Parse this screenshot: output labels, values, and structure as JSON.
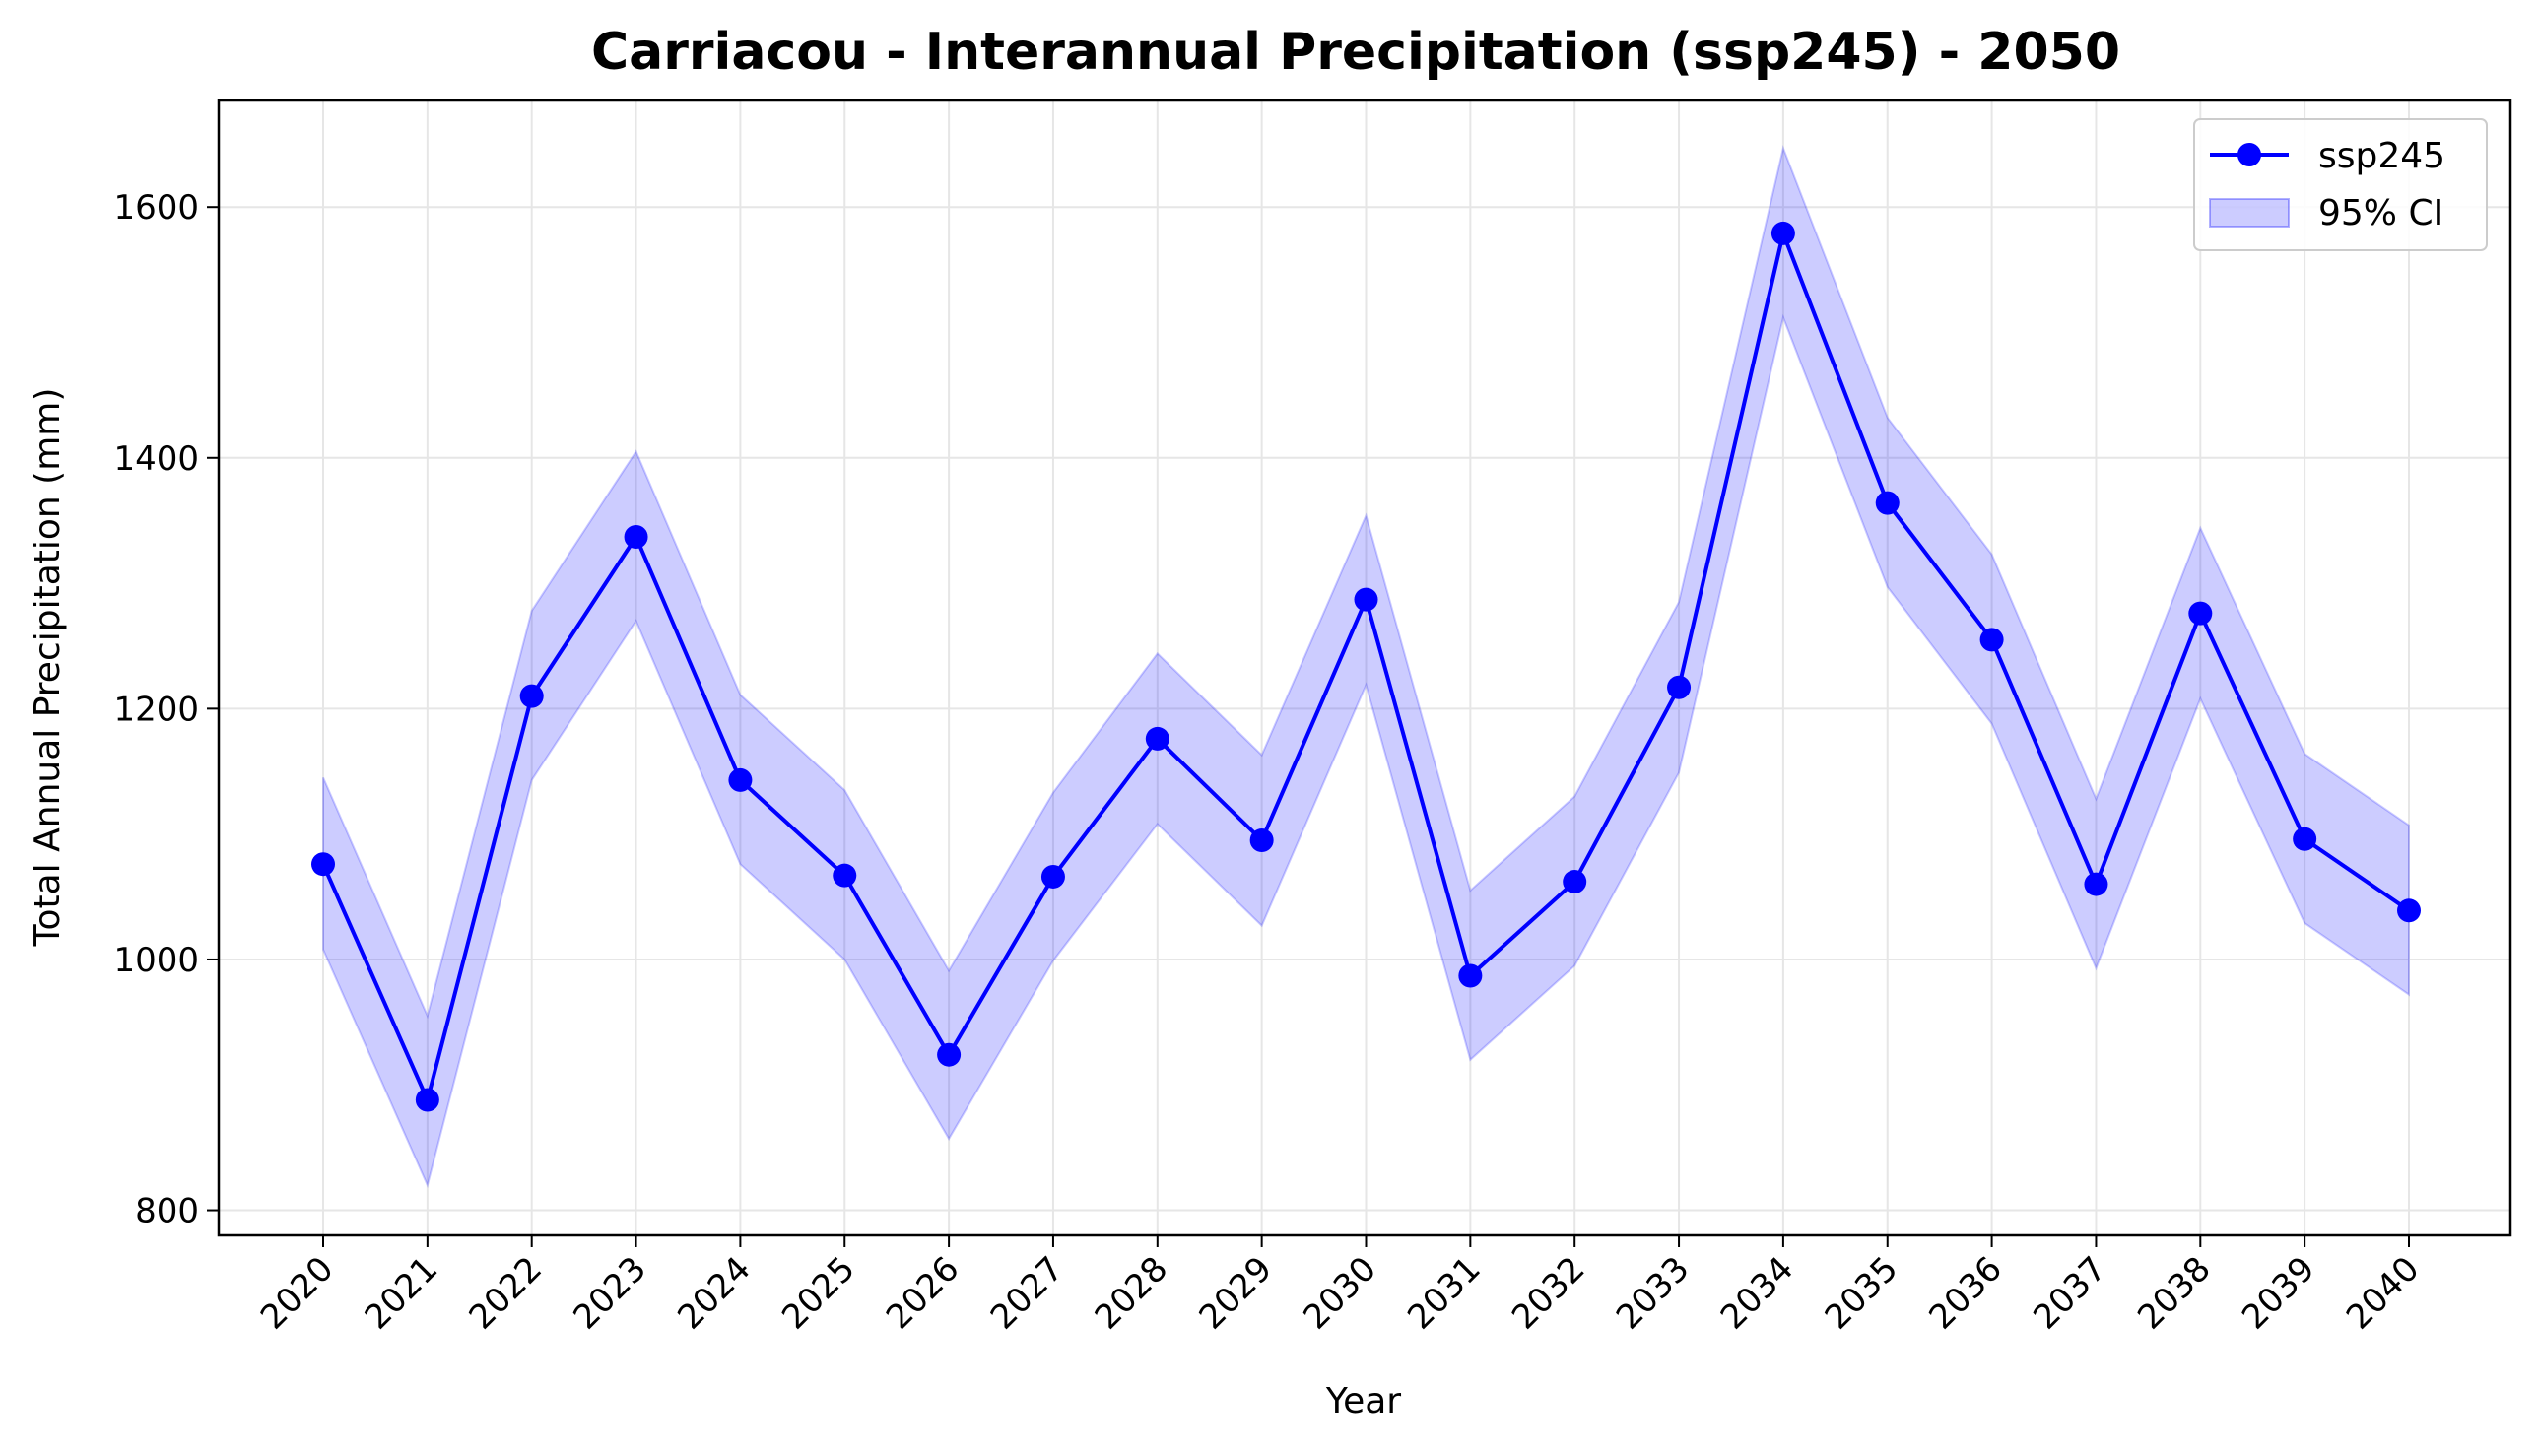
{
  "chart_data": {
    "type": "line",
    "title": "Carriacou - Interannual Precipitation (ssp245) - 2050",
    "xlabel": "Year",
    "ylabel": "Total Annual Precipitation (mm)",
    "x": [
      "2020",
      "2021",
      "2022",
      "2023",
      "2024",
      "2025",
      "2026",
      "2027",
      "2028",
      "2029",
      "2030",
      "2031",
      "2032",
      "2033",
      "2034",
      "2035",
      "2036",
      "2037",
      "2038",
      "2039",
      "2040"
    ],
    "ylim": [
      780,
      1685
    ],
    "yticks": [
      800,
      1000,
      1200,
      1400,
      1600
    ],
    "grid": true,
    "legend_position": "top-right",
    "series": [
      {
        "name": "ssp245",
        "color": "#0000ff",
        "marker": "circle",
        "values": [
          1076,
          888,
          1210,
          1337,
          1143,
          1067,
          924,
          1066,
          1176,
          1095,
          1287,
          987,
          1062,
          1217,
          1579,
          1364,
          1255,
          1060,
          1276,
          1096,
          1039
        ]
      }
    ],
    "band": {
      "name": "95% CI",
      "color": "#0000ff",
      "opacity": 0.2,
      "lower": [
        1008,
        820,
        1143,
        1270,
        1076,
        1000,
        857,
        999,
        1108,
        1027,
        1219,
        920,
        995,
        1149,
        1512,
        1297,
        1188,
        993,
        1208,
        1029,
        972
      ],
      "upper": [
        1145,
        955,
        1278,
        1405,
        1211,
        1135,
        991,
        1133,
        1244,
        1163,
        1354,
        1055,
        1130,
        1285,
        1647,
        1432,
        1323,
        1128,
        1344,
        1164,
        1107
      ]
    }
  }
}
